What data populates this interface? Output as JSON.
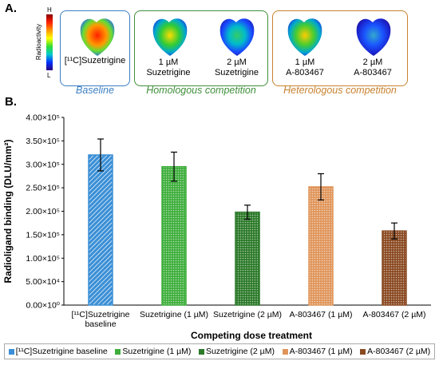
{
  "panel_a": {
    "label": "A.",
    "colorbar": {
      "title": "Radioactivity",
      "high": "H",
      "low": "L"
    },
    "groups": [
      {
        "caption": "Baseline",
        "color": "#3a7fc4",
        "images": [
          {
            "label_html": "[¹¹C]Suzetrigine"
          }
        ]
      },
      {
        "caption": "Homologous competition",
        "color": "#3f8f3a",
        "images": [
          {
            "label_html": "1 µM\nSuzetrigine"
          },
          {
            "label_html": "2 µM\nSuzetrigine"
          }
        ]
      },
      {
        "caption": "Heterologous competition",
        "color": "#c8822f",
        "images": [
          {
            "label_html": "1 µM\nA-803467"
          },
          {
            "label_html": "2 µM\nA-803467"
          }
        ]
      }
    ]
  },
  "panel_b": {
    "label": "B."
  },
  "chart_data": {
    "type": "bar",
    "xlabel": "Competing dose treatment",
    "ylabel": "Radioligand binding (DLU/mm²)",
    "ylim": [
      0,
      400000
    ],
    "yticks": [
      "0.00×10⁰",
      "5.00×10⁴",
      "1.00×10⁵",
      "1.50×10⁵",
      "2.00×10⁵",
      "2.50×10⁵",
      "3.00×10⁵",
      "3.50×10⁵",
      "4.00×10⁵"
    ],
    "ytick_values": [
      0,
      50000,
      100000,
      150000,
      200000,
      250000,
      300000,
      350000,
      400000
    ],
    "categories": [
      "[¹¹C]Suzetrigine\nbaseline",
      "Suzetrigine (1 µM)",
      "Suzetrigine (2 µM)",
      "A-803467 (1 µM)",
      "A-803467 (2 µM)"
    ],
    "values": [
      320000,
      295000,
      198000,
      252000,
      158000
    ],
    "errors": [
      34000,
      31000,
      15000,
      28000,
      17000
    ],
    "colors": [
      "#3a8fd6",
      "#3fae3c",
      "#2c7a2a",
      "#e0955a",
      "#8a4a22"
    ],
    "legend": [
      "[¹¹C]Suzetrigine baseline",
      "Suzetrigine (1 µM)",
      "Suzetrigine (2 µM)",
      "A-803467 (1 µM)",
      "A-803467 (2 µM)"
    ],
    "legend_position": "bottom",
    "grid": false
  }
}
